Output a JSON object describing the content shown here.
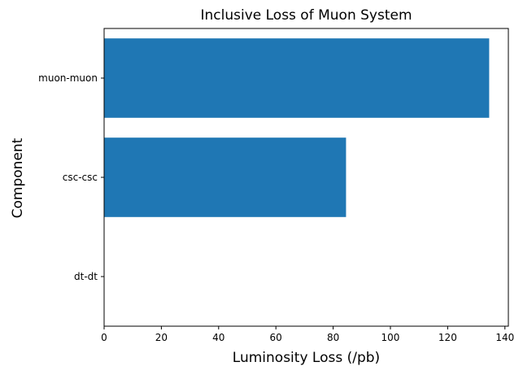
{
  "chart_data": {
    "type": "bar",
    "orientation": "horizontal",
    "title": "Inclusive Loss of Muon System",
    "xlabel": "Luminosity Loss (/pb)",
    "ylabel": "Component",
    "categories": [
      "muon-muon",
      "csc-csc",
      "dt-dt"
    ],
    "values": [
      134.5,
      84.5,
      0
    ],
    "xlim": [
      0,
      141.2
    ],
    "xticks": [
      0,
      20,
      40,
      60,
      80,
      100,
      120,
      140
    ],
    "grid": false,
    "bar_color": "#1f77b4"
  }
}
